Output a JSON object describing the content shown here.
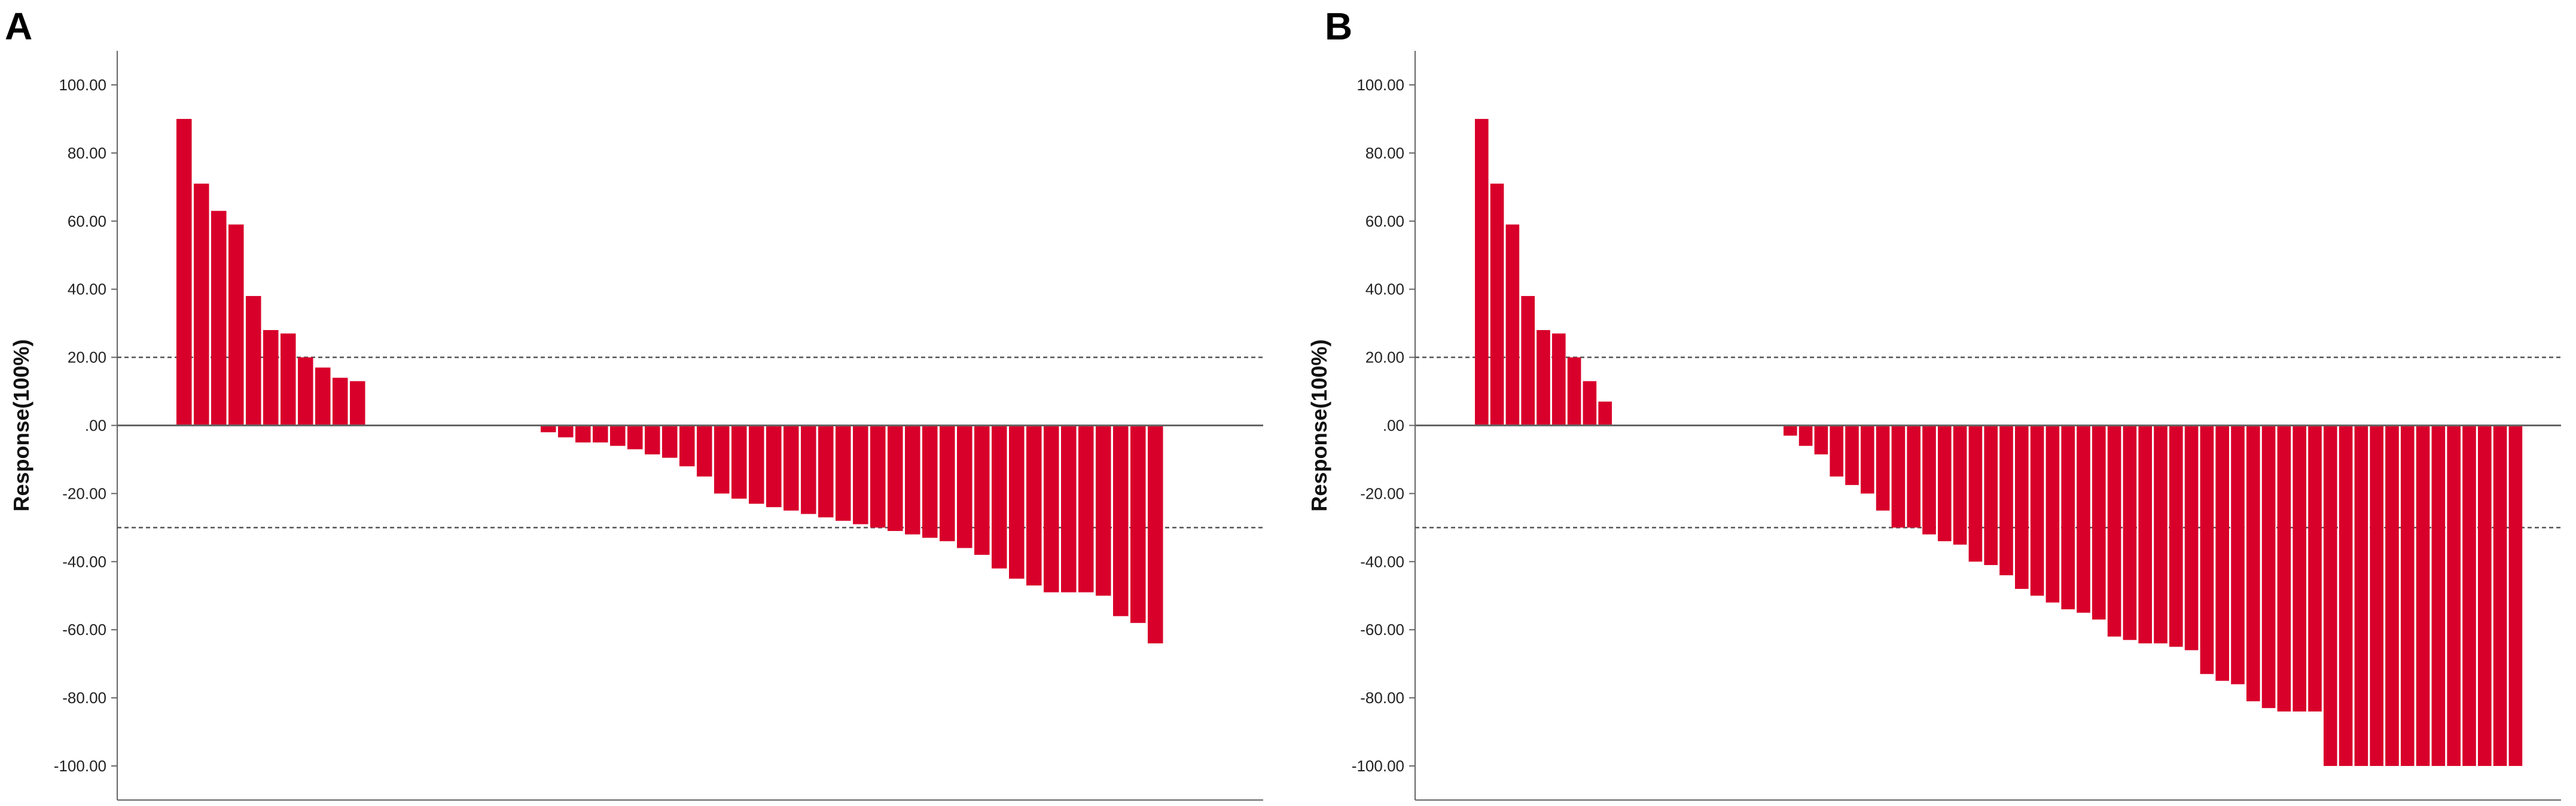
{
  "figure": {
    "bar_color": "#d8002a",
    "axis_color": "#666666",
    "reference_line_color": "#555555",
    "tick_text_color": "#222222",
    "title_text_color": "#111111"
  },
  "chart_data": [
    {
      "type": "bar",
      "panel_label": "A",
      "title": "",
      "xlabel": "",
      "ylabel": "Response(100%)",
      "ylim": [
        -110,
        110
      ],
      "yticks": [
        100,
        80,
        60,
        40,
        20,
        0,
        -20,
        -40,
        -60,
        -80,
        -100
      ],
      "ytick_labels": [
        "100.00",
        "80.00",
        "60.00",
        "40.00",
        "20.00",
        ".00",
        "-20.00",
        "-40.00",
        "-60.00",
        "-80.00",
        "-100.00"
      ],
      "reference_lines": [
        20,
        -30
      ],
      "values": [
        90,
        71,
        63,
        59,
        38,
        28,
        27,
        20,
        17,
        14,
        13,
        0,
        0,
        0,
        0,
        0,
        0,
        0,
        0,
        0,
        0,
        -2,
        -3.5,
        -5,
        -5,
        -6,
        -7,
        -8.5,
        -9.5,
        -12,
        -15,
        -20,
        -21.5,
        -23,
        -24,
        -25,
        -26,
        -27,
        -28,
        -29,
        -30,
        -31,
        -32,
        -33,
        -34,
        -36,
        -38,
        -42,
        -45,
        -47,
        -49,
        -49,
        -49,
        -50,
        -56,
        -58,
        -64
      ]
    },
    {
      "type": "bar",
      "panel_label": "B",
      "title": "",
      "xlabel": "",
      "ylabel": "Response(100%)",
      "ylim": [
        -110,
        110
      ],
      "yticks": [
        100,
        80,
        60,
        40,
        20,
        0,
        -20,
        -40,
        -60,
        -80,
        -100
      ],
      "ytick_labels": [
        "100.00",
        "80.00",
        "60.00",
        "40.00",
        "20.00",
        ".00",
        "-20.00",
        "-40.00",
        "-60.00",
        "-80.00",
        "-100.00"
      ],
      "reference_lines": [
        20,
        -30
      ],
      "values": [
        90,
        71,
        59,
        38,
        28,
        27,
        20,
        13,
        7,
        0,
        0,
        0,
        0,
        0,
        0,
        0,
        0,
        0,
        0,
        0,
        -3,
        -6,
        -8.5,
        -15,
        -17.5,
        -20,
        -25,
        -30,
        -30,
        -32,
        -34,
        -35,
        -40,
        -41,
        -44,
        -48,
        -50,
        -52,
        -54,
        -55,
        -57,
        -62,
        -63,
        -64,
        -64,
        -65,
        -66,
        -73,
        -75,
        -76,
        -81,
        -83,
        -84,
        -84,
        -84,
        -100,
        -100,
        -100,
        -100,
        -100,
        -100,
        -100,
        -100,
        -100,
        -100,
        -100,
        -100,
        -100
      ]
    }
  ]
}
